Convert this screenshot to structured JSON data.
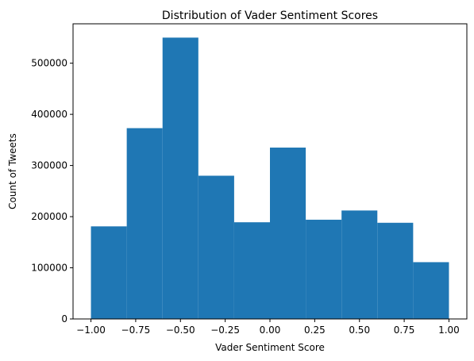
{
  "chart_data": {
    "type": "bar",
    "title": "Distribution of Vader Sentiment Scores",
    "xlabel": "Vader Sentiment Score",
    "ylabel": "Count of Tweets",
    "bin_edges": [
      -1.0,
      -0.8,
      -0.6,
      -0.4,
      -0.2,
      0.0,
      0.2,
      0.4,
      0.6,
      0.8,
      1.0
    ],
    "values": [
      181000,
      373000,
      550000,
      280000,
      189000,
      335000,
      194000,
      212000,
      188000,
      111000
    ],
    "xlim": [
      -1.1,
      1.1
    ],
    "ylim": [
      0,
      577000
    ],
    "x_ticks": [
      -1.0,
      -0.75,
      -0.5,
      -0.25,
      0.0,
      0.25,
      0.5,
      0.75,
      1.0
    ],
    "x_tick_labels": [
      "−1.00",
      "−0.75",
      "−0.50",
      "−0.25",
      "0.00",
      "0.25",
      "0.50",
      "0.75",
      "1.00"
    ],
    "y_ticks": [
      0,
      100000,
      200000,
      300000,
      400000,
      500000
    ],
    "y_tick_labels": [
      "0",
      "100000",
      "200000",
      "300000",
      "400000",
      "500000"
    ],
    "bar_color": "#1f77b4",
    "grid": false,
    "legend": "none"
  }
}
